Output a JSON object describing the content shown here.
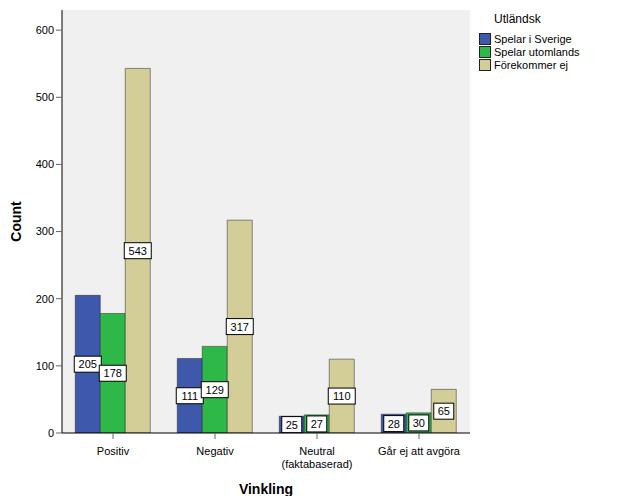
{
  "chart_data": {
    "type": "bar",
    "categories": [
      "Positiv",
      "Negativ",
      "Neutral\n(faktabaserad)",
      "Går ej att avgöra"
    ],
    "x_label": "Vinkling",
    "y_label": "Count",
    "legend_title": "Utländsk",
    "series": [
      {
        "name": "Spelar i Sverige",
        "color": "#3e58ac",
        "values": [
          205,
          111,
          25,
          28
        ]
      },
      {
        "name": "Spelar utomlands",
        "color": "#2eb848",
        "values": [
          178,
          129,
          27,
          30
        ]
      },
      {
        "name": "Förekommer ej",
        "color": "#d3ce97",
        "values": [
          543,
          317,
          110,
          65
        ]
      }
    ],
    "ylim": [
      0,
      630
    ],
    "yticks": [
      0,
      100,
      200,
      300,
      400,
      500,
      600
    ],
    "grid": false,
    "legend": "upper right",
    "data_labels": true
  }
}
